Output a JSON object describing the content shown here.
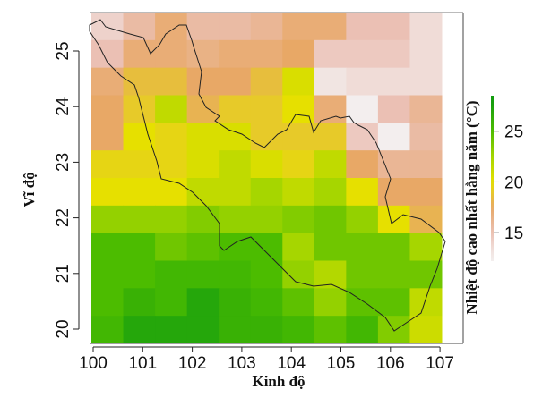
{
  "chart_data": {
    "type": "heatmap",
    "title": "",
    "xlabel": "Kinh độ",
    "ylabel": "Vĩ độ",
    "colorbar_label": "Nhiệt độ cao nhất hằng năm (°C)",
    "xlim": [
      100,
      107
    ],
    "ylim": [
      19.75,
      25.75
    ],
    "x_ticks": [
      100,
      101,
      102,
      103,
      104,
      105,
      106,
      107
    ],
    "y_ticks": [
      20,
      21,
      22,
      23,
      24,
      25
    ],
    "colorbar_ticks": [
      15,
      20,
      25
    ],
    "colorbar_range": [
      12.2,
      28.5
    ],
    "colorscale": [
      {
        "value": 12.5,
        "color": "#f3eeee"
      },
      {
        "value": 15,
        "color": "#ebc0b4"
      },
      {
        "value": 17.5,
        "color": "#e8a866"
      },
      {
        "value": 20,
        "color": "#e6e000"
      },
      {
        "value": 22.5,
        "color": "#a6d600"
      },
      {
        "value": 25,
        "color": "#4cbc00"
      },
      {
        "value": 28,
        "color": "#129c10"
      }
    ],
    "n_cols": 11,
    "row_latitudes": [
      25.5,
      25,
      24.5,
      24,
      23.5,
      23,
      22.5,
      22,
      21.5,
      21,
      20.5,
      20
    ],
    "values": [
      [
        14,
        15.5,
        17,
        15.5,
        15.5,
        16,
        17,
        17,
        15,
        15,
        13.5
      ],
      [
        15,
        17,
        17,
        16.5,
        17,
        17,
        17.5,
        14.5,
        14.5,
        14.5,
        13.5
      ],
      [
        17,
        18.5,
        18.5,
        17.5,
        17.5,
        18.5,
        20.5,
        13,
        13.5,
        13.5,
        13.5
      ],
      [
        17.5,
        19,
        21.5,
        18,
        19,
        19,
        20,
        17,
        12.5,
        15,
        16
      ],
      [
        17.5,
        20,
        19.5,
        20.5,
        20.5,
        19,
        19,
        19,
        14.5,
        12.5,
        15.5
      ],
      [
        19.5,
        19.5,
        19.5,
        20.5,
        21.5,
        20.5,
        19.5,
        21.5,
        17.5,
        16,
        16
      ],
      [
        20,
        20,
        20,
        21.5,
        21.5,
        22.5,
        21.5,
        22.5,
        20,
        17.5,
        17.5
      ],
      [
        23,
        23,
        23,
        23.5,
        23,
        23,
        23.5,
        24,
        23,
        20,
        18
      ],
      [
        25,
        25,
        24,
        24.5,
        25,
        25,
        22.5,
        24,
        24,
        24,
        22.5
      ],
      [
        25,
        25,
        25.5,
        25.5,
        25.5,
        25,
        23,
        22,
        24,
        24,
        24
      ],
      [
        25,
        26,
        25.5,
        27,
        26,
        25.5,
        24.5,
        23,
        24.5,
        24.5,
        21.5
      ],
      [
        25.5,
        27,
        27,
        27,
        26,
        26,
        25.5,
        24.5,
        25.5,
        23.5,
        21
      ]
    ]
  }
}
